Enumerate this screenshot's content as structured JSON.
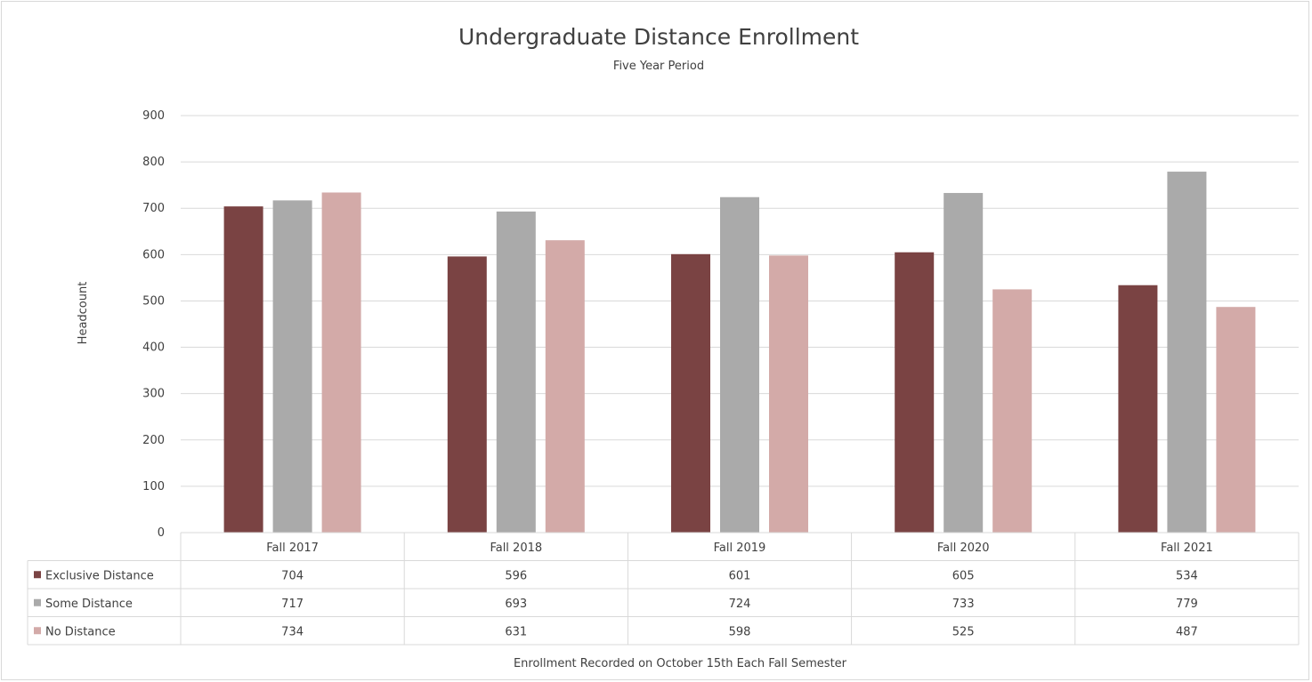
{
  "chart_data": {
    "type": "bar",
    "title": "Undergraduate Distance Enrollment",
    "subtitle": "Five Year Period",
    "ylabel": "Headcount",
    "xlabel": "Enrollment Recorded on October 15th Each Fall Semester",
    "categories": [
      "Fall 2017",
      "Fall 2018",
      "Fall 2019",
      "Fall 2020",
      "Fall 2021"
    ],
    "ylim": [
      0,
      900
    ],
    "yticks": [
      0,
      100,
      200,
      300,
      400,
      500,
      600,
      700,
      800,
      900
    ],
    "grid": true,
    "legend": "data-table",
    "series": [
      {
        "name": "Exclusive Distance",
        "color": "#7a4343",
        "values": [
          704,
          596,
          601,
          605,
          534
        ]
      },
      {
        "name": "Some Distance",
        "color": "#aaaaaa",
        "values": [
          717,
          693,
          724,
          733,
          779
        ]
      },
      {
        "name": "No Distance",
        "color": "#d3aaa8",
        "values": [
          734,
          631,
          598,
          525,
          487
        ]
      }
    ]
  }
}
